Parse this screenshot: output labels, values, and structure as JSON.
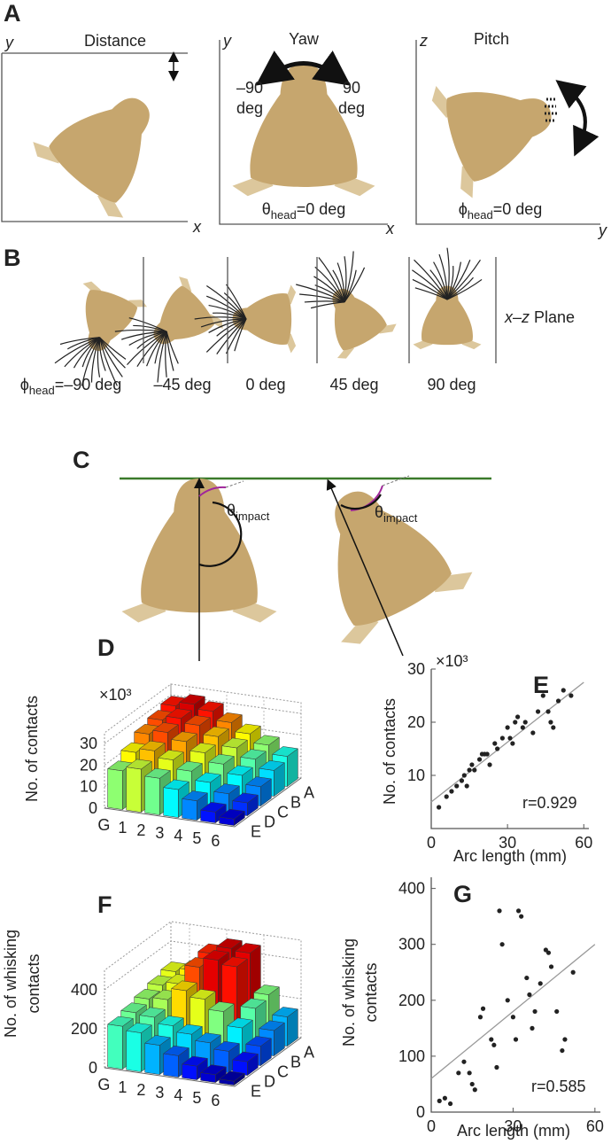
{
  "panel_a": {
    "label": "A",
    "distance": {
      "title": "Distance",
      "y_axis": "y",
      "x_axis": "x"
    },
    "yaw": {
      "title": "Yaw",
      "y_axis": "y",
      "x_axis": "x",
      "left": [
        "–90",
        "deg"
      ],
      "right": [
        "90",
        "deg"
      ],
      "angle": {
        "symbol": "θ",
        "subscript": "head",
        "text": "=0 deg"
      }
    },
    "pitch": {
      "title": "Pitch",
      "y_axis": "z",
      "x_axis": "y",
      "angle": {
        "symbol": "ϕ",
        "subscript": "head",
        "text": "=0 deg"
      }
    }
  },
  "panel_b": {
    "label": "B",
    "first": {
      "symbol": "ϕ",
      "subscript": "head",
      "text": "=–90 deg"
    },
    "angles": [
      "–45 deg",
      "0 deg",
      "45 deg",
      "90 deg"
    ],
    "plane": {
      "italic": "x–z",
      "text": "Plane"
    }
  },
  "panel_c": {
    "label": "C",
    "angle_left": {
      "symbol": "θ",
      "subscript": "impact"
    },
    "angle_right": {
      "symbol": "θ",
      "subscript": "impact"
    }
  },
  "chart_data": [
    {
      "type": "bar3d",
      "panel_label": "D",
      "ylabel": [
        "No. of contacts"
      ],
      "multiplier": "×10³",
      "categories": [
        "G",
        "1",
        "2",
        "3",
        "4",
        "5",
        "6"
      ],
      "rows": [
        "A",
        "B",
        "C",
        "D",
        "E"
      ],
      "values": [
        [
          30,
          32,
          30,
          26,
          22,
          18,
          14
        ],
        [
          28,
          30,
          28,
          24,
          20,
          16,
          12
        ],
        [
          26,
          28,
          25,
          21,
          17,
          13,
          9
        ],
        [
          22,
          24,
          21,
          17,
          13,
          9,
          6
        ],
        [
          18,
          20,
          17,
          13,
          9,
          5,
          3
        ]
      ],
      "ylim": [
        0,
        35
      ],
      "yticks": [
        0,
        10,
        20,
        30
      ],
      "colormap": "jet",
      "grid": true
    },
    {
      "type": "scatter",
      "panel_label": "E",
      "xlabel": "Arc length (mm)",
      "ylabel": [
        "No. of contacts"
      ],
      "multiplier": "×10³",
      "x": [
        3,
        6,
        8,
        10,
        12,
        13,
        14,
        15,
        16,
        17,
        19,
        20,
        21,
        22,
        23,
        25,
        26,
        28,
        30,
        31,
        32,
        33,
        34,
        36,
        37,
        40,
        42,
        44,
        46,
        47,
        48,
        50,
        52,
        55
      ],
      "y": [
        4,
        6,
        7,
        8,
        9,
        10,
        8,
        11,
        12,
        11,
        13,
        14,
        14,
        14,
        12,
        16,
        15,
        17,
        19,
        17,
        16,
        20,
        21,
        19,
        20,
        18,
        22,
        25,
        22,
        20,
        19,
        24,
        26,
        25
      ],
      "xlim": [
        0,
        62
      ],
      "ylim": [
        0,
        30
      ],
      "xticks": [
        0,
        30,
        60
      ],
      "yticks": [
        10,
        20,
        30
      ],
      "fit": {
        "x": [
          0,
          60
        ],
        "y": [
          5,
          27.5
        ]
      },
      "annotation": "r=0.929",
      "color": "#222222"
    },
    {
      "type": "bar3d",
      "panel_label": "F",
      "ylabel": [
        "No. of whisking",
        "contacts"
      ],
      "categories": [
        "G",
        "1",
        "2",
        "3",
        "4",
        "5",
        "6"
      ],
      "rows": [
        "A",
        "B",
        "C",
        "D",
        "E"
      ],
      "values": [
        [
          300,
          320,
          420,
          460,
          450,
          250,
          150
        ],
        [
          280,
          300,
          400,
          450,
          430,
          230,
          130
        ],
        [
          260,
          270,
          330,
          300,
          250,
          180,
          100
        ],
        [
          240,
          230,
          200,
          170,
          140,
          110,
          70
        ],
        [
          220,
          200,
          150,
          110,
          70,
          40,
          20
        ]
      ],
      "ylim": [
        0,
        500
      ],
      "yticks": [
        0,
        200,
        400
      ],
      "colormap": "jet",
      "grid": true
    },
    {
      "type": "scatter",
      "panel_label": "G",
      "xlabel": "Arc length (mm)",
      "ylabel": [
        "No. of whisking",
        "contacts"
      ],
      "x": [
        3,
        5,
        7,
        10,
        12,
        14,
        15,
        16,
        18,
        19,
        22,
        23,
        24,
        25,
        26,
        28,
        30,
        31,
        32,
        33,
        35,
        36,
        37,
        38,
        40,
        42,
        43,
        44,
        46,
        48,
        49,
        52
      ],
      "y": [
        20,
        25,
        15,
        70,
        90,
        70,
        50,
        40,
        170,
        185,
        130,
        120,
        80,
        360,
        300,
        200,
        170,
        130,
        360,
        350,
        240,
        210,
        150,
        180,
        230,
        290,
        285,
        260,
        180,
        110,
        130,
        250
      ],
      "xlim": [
        0,
        62
      ],
      "ylim": [
        0,
        420
      ],
      "xticks": [
        0,
        30,
        60
      ],
      "yticks": [
        0,
        100,
        200,
        300,
        400
      ],
      "fit": {
        "x": [
          0,
          60
        ],
        "y": [
          60,
          300
        ]
      },
      "annotation": "r=0.585",
      "color": "#222222"
    }
  ]
}
